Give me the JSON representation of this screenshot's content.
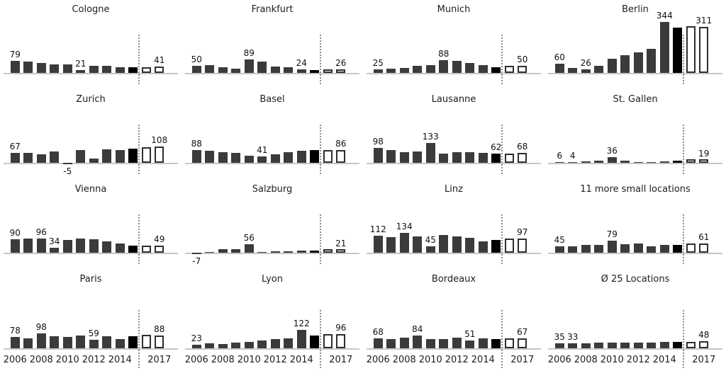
{
  "colors": {
    "bar_historical": "#3b3b3b",
    "bar_last_actual": "#000000",
    "bar_forecast_fill": "#ffffff",
    "bar_forecast_border": "#2e2e2e",
    "baseline": "#c6c6c6",
    "divider_dotted": "#8d8d8d",
    "text": "#1d1d1d"
  },
  "axis": {
    "years": [
      2006,
      2007,
      2008,
      2009,
      2010,
      2011,
      2012,
      2013,
      2014,
      2015,
      2016,
      2017
    ],
    "tick_labels": [
      "2006",
      "2008",
      "2010",
      "2012",
      "2014",
      "2017"
    ],
    "tick_indices": [
      0,
      2,
      4,
      6,
      8,
      11
    ],
    "ticks_shown_on_bottom_row_only": true,
    "divider_between_years": [
      2015,
      2016
    ],
    "ylim": [
      -10,
      350
    ],
    "grid": false
  },
  "bar_style_map": {
    "dark_indices": [
      0,
      1,
      2,
      3,
      4,
      5,
      6,
      7,
      8
    ],
    "black_index": 9,
    "outline_indices": [
      10,
      11
    ]
  },
  "chart_data": [
    {
      "type": "bar",
      "title": "Cologne",
      "x": [
        2006,
        2007,
        2008,
        2009,
        2010,
        2011,
        2012,
        2013,
        2014,
        2015,
        2016,
        2017
      ],
      "values": [
        79,
        75,
        67,
        56,
        56,
        21,
        46,
        46,
        40,
        40,
        40,
        41
      ],
      "value_labels": [
        {
          "index": 0,
          "text": "79"
        },
        {
          "index": 5,
          "text": "21"
        },
        {
          "index": 11,
          "text": "41"
        }
      ]
    },
    {
      "type": "bar",
      "title": "Frankfurt",
      "x": [
        2006,
        2007,
        2008,
        2009,
        2010,
        2011,
        2012,
        2013,
        2014,
        2015,
        2016,
        2017
      ],
      "values": [
        50,
        53,
        38,
        30,
        89,
        76,
        42,
        37,
        24,
        20,
        14,
        26
      ],
      "value_labels": [
        {
          "index": 0,
          "text": "50"
        },
        {
          "index": 4,
          "text": "89"
        },
        {
          "index": 8,
          "text": "24"
        },
        {
          "index": 11,
          "text": "26"
        }
      ]
    },
    {
      "type": "bar",
      "title": "Munich",
      "x": [
        2006,
        2007,
        2008,
        2009,
        2010,
        2011,
        2012,
        2013,
        2014,
        2015,
        2016,
        2017
      ],
      "values": [
        25,
        30,
        34,
        48,
        54,
        88,
        82,
        69,
        54,
        38,
        48,
        50
      ],
      "value_labels": [
        {
          "index": 0,
          "text": "25"
        },
        {
          "index": 5,
          "text": "88"
        },
        {
          "index": 11,
          "text": "50"
        }
      ]
    },
    {
      "type": "bar",
      "title": "Berlin",
      "x": [
        2006,
        2007,
        2008,
        2009,
        2010,
        2011,
        2012,
        2013,
        2014,
        2015,
        2016,
        2017
      ],
      "values": [
        60,
        35,
        26,
        50,
        95,
        120,
        140,
        160,
        344,
        305,
        313,
        311
      ],
      "value_labels": [
        {
          "index": 0,
          "text": "60"
        },
        {
          "index": 2,
          "text": "26"
        },
        {
          "index": 8,
          "text": "344"
        },
        {
          "index": 11,
          "text": "311"
        }
      ]
    },
    {
      "type": "bar",
      "title": "Zurich",
      "x": [
        2006,
        2007,
        2008,
        2009,
        2010,
        2011,
        2012,
        2013,
        2014,
        2015,
        2016,
        2017
      ],
      "values": [
        67,
        65,
        58,
        78,
        -5,
        88,
        30,
        92,
        88,
        97,
        103,
        108
      ],
      "value_labels": [
        {
          "index": 0,
          "text": "67"
        },
        {
          "index": 4,
          "text": "-5"
        },
        {
          "index": 11,
          "text": "108"
        }
      ]
    },
    {
      "type": "bar",
      "title": "Basel",
      "x": [
        2006,
        2007,
        2008,
        2009,
        2010,
        2011,
        2012,
        2013,
        2014,
        2015,
        2016,
        2017
      ],
      "values": [
        88,
        83,
        70,
        66,
        48,
        41,
        55,
        73,
        80,
        88,
        85,
        86
      ],
      "value_labels": [
        {
          "index": 0,
          "text": "88"
        },
        {
          "index": 5,
          "text": "41"
        },
        {
          "index": 11,
          "text": "86"
        }
      ]
    },
    {
      "type": "bar",
      "title": "Lausanne",
      "x": [
        2006,
        2007,
        2008,
        2009,
        2010,
        2011,
        2012,
        2013,
        2014,
        2015,
        2016,
        2017
      ],
      "values": [
        98,
        88,
        70,
        74,
        133,
        63,
        72,
        72,
        66,
        62,
        64,
        68
      ],
      "value_labels": [
        {
          "index": 0,
          "text": "98"
        },
        {
          "index": 4,
          "text": "133"
        },
        {
          "index": 9,
          "text": "62"
        },
        {
          "index": 11,
          "text": "68"
        }
      ]
    },
    {
      "type": "bar",
      "title": "St. Gallen",
      "x": [
        2006,
        2007,
        2008,
        2009,
        2010,
        2011,
        2012,
        2013,
        2014,
        2015,
        2016,
        2017
      ],
      "values": [
        6,
        4,
        10,
        13,
        36,
        14,
        7,
        4,
        11,
        12,
        13,
        19
      ],
      "value_labels": [
        {
          "index": 0,
          "text": "6"
        },
        {
          "index": 1,
          "text": "4"
        },
        {
          "index": 4,
          "text": "36"
        },
        {
          "index": 11,
          "text": "19"
        }
      ]
    },
    {
      "type": "bar",
      "title": "Vienna",
      "x": [
        2006,
        2007,
        2008,
        2009,
        2010,
        2011,
        2012,
        2013,
        2014,
        2015,
        2016,
        2017
      ],
      "values": [
        90,
        93,
        96,
        34,
        88,
        95,
        90,
        74,
        63,
        46,
        49,
        49
      ],
      "value_labels": [
        {
          "index": 0,
          "text": "90"
        },
        {
          "index": 2,
          "text": "96"
        },
        {
          "index": 3,
          "text": "34"
        },
        {
          "index": 11,
          "text": "49"
        }
      ]
    },
    {
      "type": "bar",
      "title": "Salzburg",
      "x": [
        2006,
        2007,
        2008,
        2009,
        2010,
        2011,
        2012,
        2013,
        2014,
        2015,
        2016,
        2017
      ],
      "values": [
        -7,
        1,
        22,
        26,
        56,
        2,
        9,
        11,
        14,
        15,
        15,
        21
      ],
      "value_labels": [
        {
          "index": 0,
          "text": "-7"
        },
        {
          "index": 4,
          "text": "56"
        },
        {
          "index": 11,
          "text": "21"
        }
      ]
    },
    {
      "type": "bar",
      "title": "Linz",
      "x": [
        2006,
        2007,
        2008,
        2009,
        2010,
        2011,
        2012,
        2013,
        2014,
        2015,
        2016,
        2017
      ],
      "values": [
        112,
        105,
        134,
        110,
        45,
        118,
        108,
        98,
        75,
        87,
        94,
        97
      ],
      "value_labels": [
        {
          "index": 0,
          "text": "112"
        },
        {
          "index": 2,
          "text": "134"
        },
        {
          "index": 4,
          "text": "45"
        },
        {
          "index": 11,
          "text": "97"
        }
      ]
    },
    {
      "type": "bar",
      "title": "11 more small locations",
      "x": [
        2006,
        2007,
        2008,
        2009,
        2010,
        2011,
        2012,
        2013,
        2014,
        2015,
        2016,
        2017
      ],
      "values": [
        45,
        45,
        54,
        51,
        79,
        59,
        62,
        41,
        54,
        54,
        62,
        61
      ],
      "value_labels": [
        {
          "index": 0,
          "text": "45"
        },
        {
          "index": 4,
          "text": "79"
        },
        {
          "index": 11,
          "text": "61"
        }
      ]
    },
    {
      "type": "bar",
      "title": "Paris",
      "x": [
        2006,
        2007,
        2008,
        2009,
        2010,
        2011,
        2012,
        2013,
        2014,
        2015,
        2016,
        2017
      ],
      "values": [
        78,
        66,
        98,
        82,
        75,
        85,
        59,
        80,
        64,
        82,
        89,
        88
      ],
      "value_labels": [
        {
          "index": 0,
          "text": "78"
        },
        {
          "index": 2,
          "text": "98"
        },
        {
          "index": 6,
          "text": "59"
        },
        {
          "index": 11,
          "text": "88"
        }
      ]
    },
    {
      "type": "bar",
      "title": "Lyon",
      "x": [
        2006,
        2007,
        2008,
        2009,
        2010,
        2011,
        2012,
        2013,
        2014,
        2015,
        2016,
        2017
      ],
      "values": [
        23,
        33,
        31,
        38,
        45,
        52,
        60,
        68,
        122,
        85,
        93,
        96
      ],
      "value_labels": [
        {
          "index": 0,
          "text": "23"
        },
        {
          "index": 8,
          "text": "122"
        },
        {
          "index": 11,
          "text": "96"
        }
      ]
    },
    {
      "type": "bar",
      "title": "Bordeaux",
      "x": [
        2006,
        2007,
        2008,
        2009,
        2010,
        2011,
        2012,
        2013,
        2014,
        2015,
        2016,
        2017
      ],
      "values": [
        68,
        64,
        71,
        84,
        60,
        64,
        71,
        51,
        66,
        62,
        66,
        67
      ],
      "value_labels": [
        {
          "index": 0,
          "text": "68"
        },
        {
          "index": 3,
          "text": "84"
        },
        {
          "index": 7,
          "text": "51"
        },
        {
          "index": 11,
          "text": "67"
        }
      ]
    },
    {
      "type": "bar",
      "title": "Ø 25 Locations",
      "x": [
        2006,
        2007,
        2008,
        2009,
        2010,
        2011,
        2012,
        2013,
        2014,
        2015,
        2016,
        2017
      ],
      "values": [
        35,
        33,
        35,
        36,
        38,
        39,
        40,
        40,
        44,
        44,
        45,
        48
      ],
      "value_labels": [
        {
          "index": 0,
          "text": "35"
        },
        {
          "index": 1,
          "text": "33"
        },
        {
          "index": 11,
          "text": "48"
        }
      ]
    }
  ]
}
